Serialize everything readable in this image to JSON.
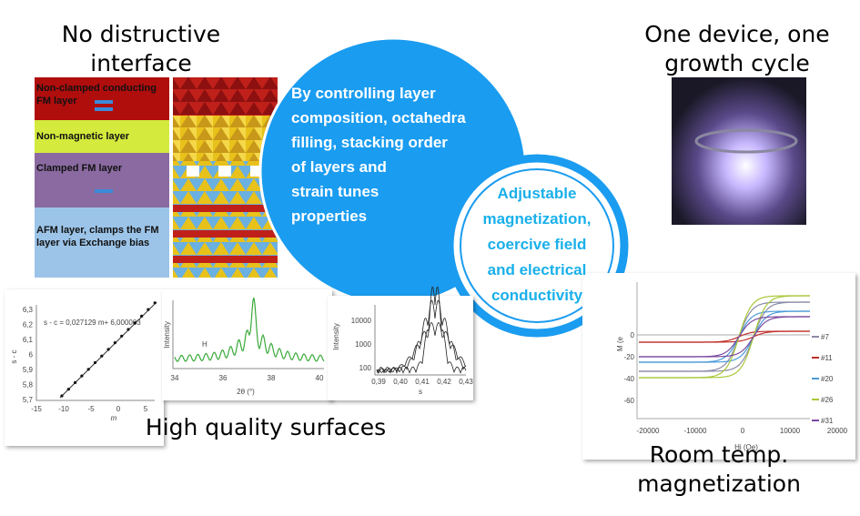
{
  "left_title": [
    "No distructive",
    "interface"
  ],
  "layers": [
    [
      "Non-clamped conducting",
      "FM layer"
    ],
    [
      "Non-magnetic layer"
    ],
    [
      "Clamped FM layer"
    ],
    [
      "AFM layer, clamps the FM",
      "layer via Exchange bias"
    ]
  ],
  "center_text": [
    "By controlling layer",
    "composition, octahedra",
    "filling,  stacking order",
    "of layers and",
    "strain tunes",
    "properties"
  ],
  "inner_text": [
    "Adjustable",
    "magnetization,",
    "coercive field",
    "and electrical",
    "conductivity"
  ],
  "right_title": [
    "One device, one",
    "growth cycle"
  ],
  "plots": {
    "linear_fit": {
      "equation": "s - c = 0,027129 m+ 6,000003",
      "y_label": "s - c",
      "x_label": "m",
      "yticks": [
        "6,3",
        "6,2",
        "6,1",
        "6",
        "5,9",
        "5,8",
        "5,7"
      ],
      "xticks": [
        "-15",
        "-10",
        "-5",
        "0",
        "5"
      ]
    },
    "xrd": {
      "y_label": "Intensity",
      "series_label": "H",
      "x_label": "2θ (°)",
      "xticks": [
        "34",
        "36",
        "38",
        "40"
      ]
    },
    "reflectivity": {
      "y_label": "Intensity",
      "x_label": "s",
      "yticks": [
        "10000",
        "1000",
        "100"
      ],
      "xticks": [
        "0,39",
        "0,40",
        "0,41",
        "0,42",
        "0,43"
      ]
    },
    "magnetization": {
      "y_label": "M (e",
      "x_label": "Hi (Oe)",
      "yticks": [
        "0",
        "-20",
        "-40",
        "-60"
      ],
      "xticks": [
        "-20000",
        "-10000",
        "0",
        "10000",
        "20000"
      ],
      "legend": [
        "#7",
        "#11",
        "#20",
        "#26",
        "#31"
      ]
    }
  },
  "bottom_caption": "High quality surfaces",
  "magnetization_caption": [
    "Room temp.",
    "magnetization"
  ]
}
